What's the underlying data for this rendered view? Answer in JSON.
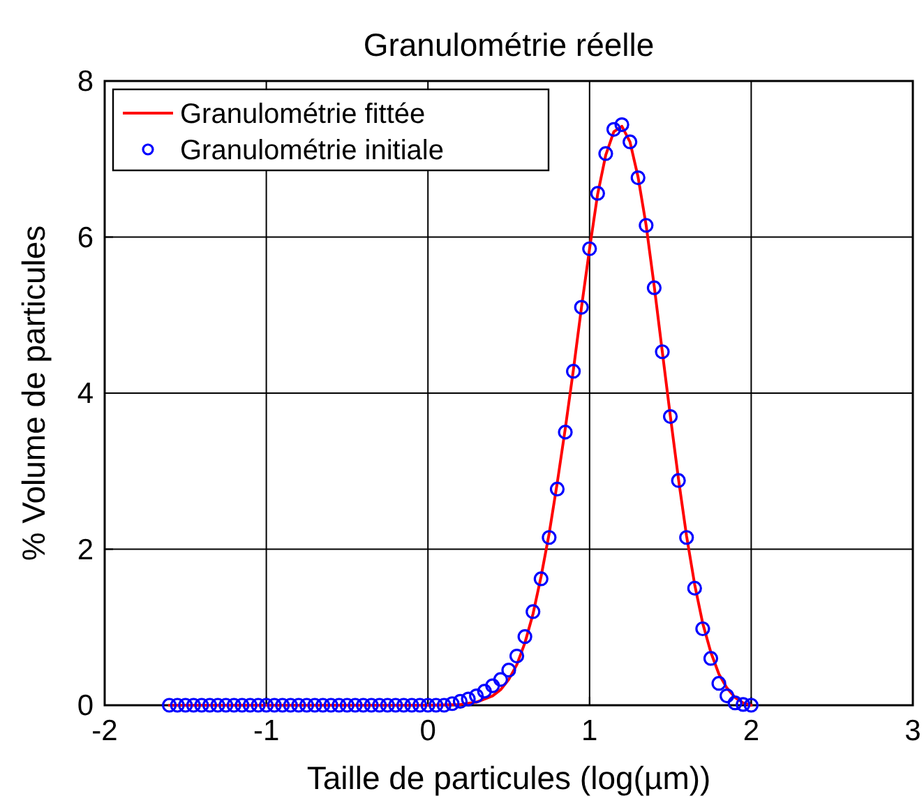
{
  "chart_data": {
    "type": "line",
    "title": "Granulométrie réelle",
    "xlabel": "Taille de particules (log(µm))",
    "ylabel": "% Volume de particules",
    "xlim": [
      -2,
      3
    ],
    "ylim": [
      0,
      8
    ],
    "xticks": [
      -2,
      -1,
      0,
      1,
      2,
      3
    ],
    "yticks": [
      0,
      2,
      4,
      6,
      8
    ],
    "grid": true,
    "legend": "top left",
    "series": [
      {
        "name": "Granulométrie fittée",
        "type": "line",
        "color": "#ff0000",
        "line_style": "solid",
        "marker": "none",
        "x": [
          -1.6,
          0,
          0.2,
          0.3,
          0.4,
          0.45,
          0.5,
          0.55,
          0.6,
          0.65,
          0.7,
          0.75,
          0.8,
          0.85,
          0.9,
          0.95,
          1.0,
          1.05,
          1.1,
          1.15,
          1.2,
          1.25,
          1.3,
          1.35,
          1.4,
          1.45,
          1.5,
          1.55,
          1.6,
          1.65,
          1.7,
          1.75,
          1.8,
          1.85,
          1.9,
          1.95,
          2.0
        ],
        "values": [
          0,
          0,
          0.01,
          0.04,
          0.12,
          0.2,
          0.33,
          0.52,
          0.8,
          1.17,
          1.65,
          2.2,
          2.85,
          3.55,
          4.3,
          5.1,
          5.85,
          6.55,
          7.05,
          7.35,
          7.42,
          7.22,
          6.77,
          6.15,
          5.37,
          4.53,
          3.7,
          2.9,
          2.17,
          1.55,
          1.05,
          0.68,
          0.4,
          0.22,
          0.1,
          0.03,
          0
        ]
      },
      {
        "name": "Granulométrie initiale",
        "type": "scatter",
        "color": "#0000ff",
        "marker": "circle",
        "x": [
          -1.6,
          -1.55,
          -1.5,
          -1.45,
          -1.4,
          -1.35,
          -1.3,
          -1.25,
          -1.2,
          -1.15,
          -1.1,
          -1.05,
          -1.0,
          -0.95,
          -0.9,
          -0.85,
          -0.8,
          -0.75,
          -0.7,
          -0.65,
          -0.6,
          -0.55,
          -0.5,
          -0.45,
          -0.4,
          -0.35,
          -0.3,
          -0.25,
          -0.2,
          -0.15,
          -0.1,
          -0.05,
          0,
          0.05,
          0.1,
          0.15,
          0.2,
          0.25,
          0.3,
          0.35,
          0.4,
          0.45,
          0.5,
          0.55,
          0.6,
          0.65,
          0.7,
          0.75,
          0.8,
          0.85,
          0.9,
          0.95,
          1.0,
          1.05,
          1.1,
          1.15,
          1.2,
          1.25,
          1.3,
          1.35,
          1.4,
          1.45,
          1.5,
          1.55,
          1.6,
          1.65,
          1.7,
          1.75,
          1.8,
          1.85,
          1.9,
          1.95,
          2.0
        ],
        "values": [
          0,
          0,
          0,
          0,
          0,
          0,
          0,
          0,
          0,
          0,
          0,
          0,
          0,
          0,
          0,
          0,
          0,
          0,
          0,
          0,
          0,
          0,
          0,
          0,
          0,
          0,
          0,
          0,
          0,
          0,
          0,
          0,
          0,
          0,
          0,
          0.02,
          0.05,
          0.08,
          0.12,
          0.18,
          0.25,
          0.33,
          0.45,
          0.63,
          0.88,
          1.2,
          1.62,
          2.15,
          2.77,
          3.5,
          4.28,
          5.1,
          5.85,
          6.56,
          7.07,
          7.38,
          7.44,
          7.22,
          6.76,
          6.15,
          5.35,
          4.53,
          3.7,
          2.88,
          2.15,
          1.5,
          0.98,
          0.6,
          0.28,
          0.12,
          0.03,
          0.01,
          0
        ]
      }
    ]
  }
}
